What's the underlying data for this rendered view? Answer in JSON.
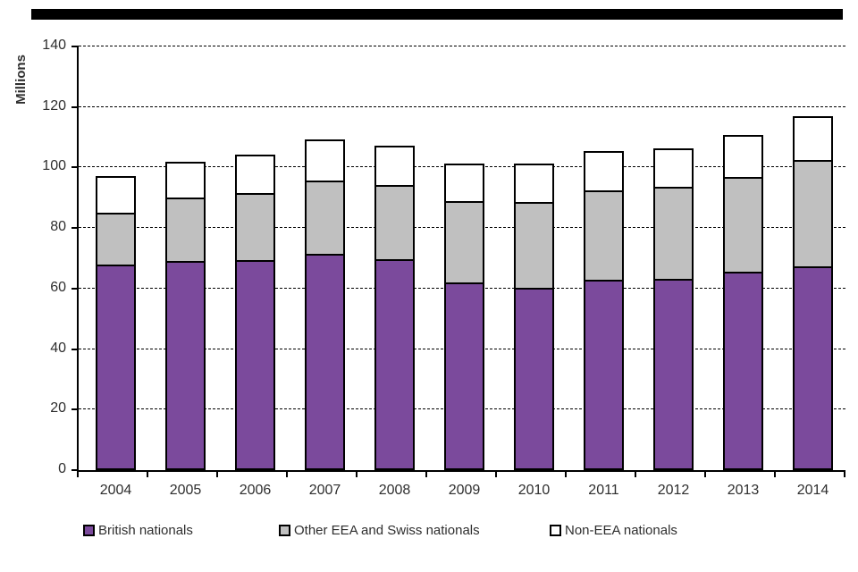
{
  "figure": {
    "y_axis_title": "Millions",
    "top_rule_color": "#000000"
  },
  "chart_data": {
    "type": "bar",
    "stacked": true,
    "title": "",
    "xlabel": "",
    "ylabel": "Millions",
    "ylim": [
      0,
      140
    ],
    "ytick_step": 20,
    "yticks": [
      "0",
      "20",
      "40",
      "60",
      "80",
      "100",
      "120",
      "140"
    ],
    "grid": "horizontal-dashed",
    "legend_position": "bottom",
    "categories": [
      "2004",
      "2005",
      "2006",
      "2007",
      "2008",
      "2009",
      "2010",
      "2011",
      "2012",
      "2013",
      "2014"
    ],
    "series": [
      {
        "name": "British nationals",
        "color": "#7B4A9C",
        "values": [
          68.0,
          69.0,
          69.5,
          71.5,
          69.8,
          62.1,
          60.3,
          62.8,
          63.1,
          65.5,
          67.3
        ]
      },
      {
        "name": "Other EEA and Swiss nationals",
        "color": "#C0C0C0",
        "values": [
          17.0,
          21.0,
          22.2,
          24.3,
          24.5,
          26.8,
          28.4,
          29.4,
          30.3,
          31.4,
          35.1
        ]
      },
      {
        "name": "Non-EEA nationals",
        "color": "#FFFFFF",
        "values": [
          12.1,
          12.0,
          12.7,
          13.5,
          13.0,
          12.3,
          12.5,
          13.2,
          12.9,
          14.0,
          14.5
        ]
      }
    ]
  },
  "legend": {
    "items": [
      {
        "label": "British nationals"
      },
      {
        "label": "Other EEA and Swiss nationals"
      },
      {
        "label": "Non-EEA nationals"
      }
    ]
  }
}
